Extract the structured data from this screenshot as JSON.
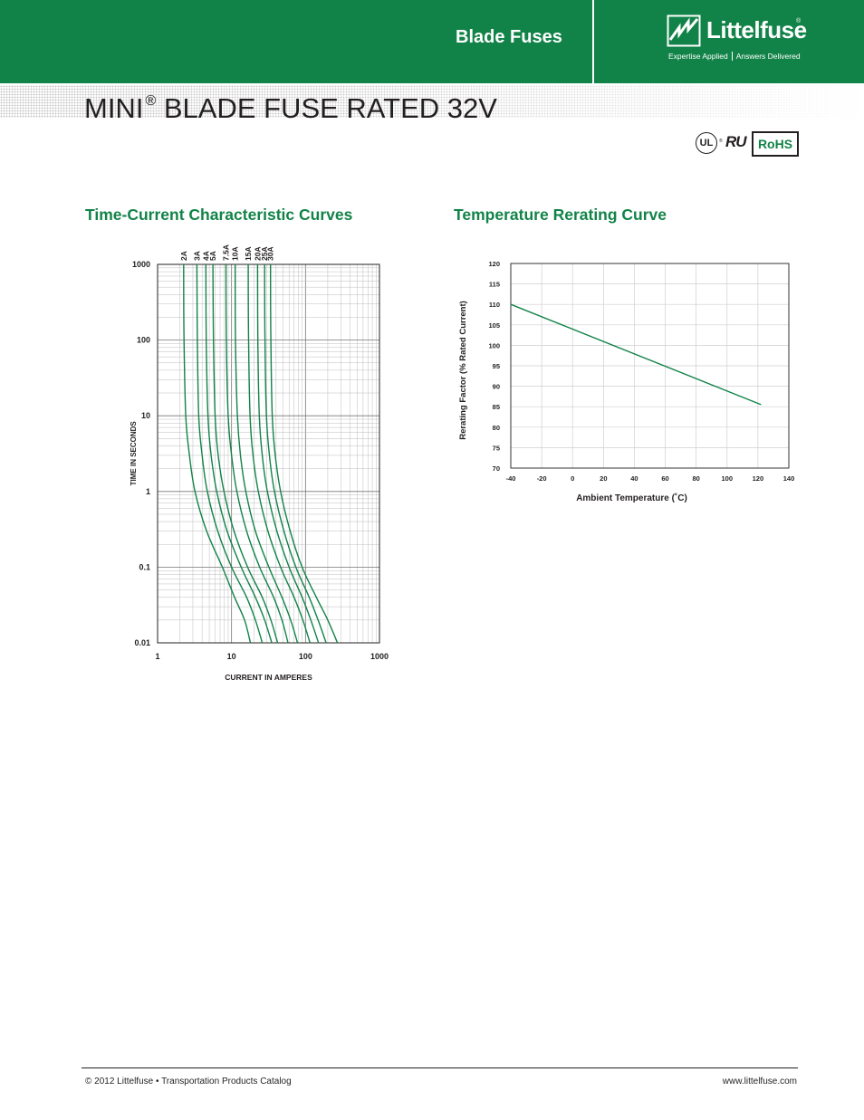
{
  "header": {
    "section_title": "Blade Fuses",
    "brand_name": "Littelfuse",
    "brand_reg": "®",
    "tagline_left": "Expertise Applied",
    "tagline_right": "Answers Delivered",
    "brand_color": "#128348"
  },
  "page_title": {
    "prefix": "MINI",
    "reg": "®",
    "rest": " BLADE FUSE RATED 32V"
  },
  "certifications": {
    "ul": "UL",
    "ur": "R",
    "rohs": "RoHS"
  },
  "chart_titles": {
    "time_current": "Time-Current Characteristic Curves",
    "rerating": "Temperature Rerating Curve"
  },
  "chart_data": [
    {
      "type": "line",
      "title": "Time-Current Characteristic Curves",
      "xlabel": "CURRENT IN AMPERES",
      "ylabel": "TIME IN SECONDS",
      "x_scale": "log",
      "y_scale": "log",
      "xlim": [
        1,
        1000
      ],
      "ylim": [
        0.01,
        1000
      ],
      "x_ticks": [
        "1",
        "10",
        "100",
        "1000"
      ],
      "y_ticks": [
        "0.01",
        "0.1",
        "1",
        "10",
        "100",
        "1000"
      ],
      "grid": true,
      "series": [
        {
          "name": "2A",
          "points": [
            [
              2.25,
              1000
            ],
            [
              2.28,
              100
            ],
            [
              2.4,
              10
            ],
            [
              2.7,
              3
            ],
            [
              3.2,
              1
            ],
            [
              4.6,
              0.3
            ],
            [
              7.5,
              0.1
            ],
            [
              11,
              0.04
            ],
            [
              15,
              0.02
            ],
            [
              18,
              0.01
            ]
          ]
        },
        {
          "name": "3A",
          "points": [
            [
              3.4,
              1000
            ],
            [
              3.45,
              100
            ],
            [
              3.6,
              10
            ],
            [
              4.0,
              3
            ],
            [
              4.7,
              1
            ],
            [
              6.5,
              0.3
            ],
            [
              10,
              0.1
            ],
            [
              16,
              0.04
            ],
            [
              21,
              0.02
            ],
            [
              26,
              0.01
            ]
          ]
        },
        {
          "name": "4A",
          "points": [
            [
              4.5,
              1000
            ],
            [
              4.55,
              100
            ],
            [
              4.8,
              10
            ],
            [
              5.3,
              3
            ],
            [
              6.3,
              1
            ],
            [
              8.7,
              0.3
            ],
            [
              13.5,
              0.1
            ],
            [
              21,
              0.04
            ],
            [
              28,
              0.02
            ],
            [
              35,
              0.01
            ]
          ]
        },
        {
          "name": "5A",
          "points": [
            [
              5.6,
              1000
            ],
            [
              5.7,
              100
            ],
            [
              6.0,
              10
            ],
            [
              6.6,
              3
            ],
            [
              7.9,
              1
            ],
            [
              10.8,
              0.3
            ],
            [
              16.5,
              0.1
            ],
            [
              26,
              0.04
            ],
            [
              34,
              0.02
            ],
            [
              42,
              0.01
            ]
          ]
        },
        {
          "name": "7.5A",
          "points": [
            [
              8.4,
              1000
            ],
            [
              8.5,
              100
            ],
            [
              9.0,
              10
            ],
            [
              10,
              3
            ],
            [
              11.8,
              1
            ],
            [
              16,
              0.3
            ],
            [
              24,
              0.1
            ],
            [
              37,
              0.04
            ],
            [
              48,
              0.02
            ],
            [
              58,
              0.01
            ]
          ]
        },
        {
          "name": "10A",
          "points": [
            [
              11.2,
              1000
            ],
            [
              11.3,
              100
            ],
            [
              12,
              10
            ],
            [
              13.2,
              3
            ],
            [
              15.6,
              1
            ],
            [
              21,
              0.3
            ],
            [
              32,
              0.1
            ],
            [
              48,
              0.04
            ],
            [
              63,
              0.02
            ],
            [
              78,
              0.01
            ]
          ]
        },
        {
          "name": "15A",
          "points": [
            [
              16.8,
              1000
            ],
            [
              17,
              100
            ],
            [
              17.8,
              10
            ],
            [
              19.5,
              3
            ],
            [
              23,
              1
            ],
            [
              31,
              0.3
            ],
            [
              46,
              0.1
            ],
            [
              70,
              0.04
            ],
            [
              92,
              0.02
            ],
            [
              115,
              0.01
            ]
          ]
        },
        {
          "name": "20A",
          "points": [
            [
              22.5,
              1000
            ],
            [
              22.7,
              100
            ],
            [
              23.7,
              10
            ],
            [
              26,
              3
            ],
            [
              30.5,
              1
            ],
            [
              41,
              0.3
            ],
            [
              60,
              0.1
            ],
            [
              90,
              0.04
            ],
            [
              118,
              0.02
            ],
            [
              150,
              0.01
            ]
          ]
        },
        {
          "name": "25A",
          "points": [
            [
              28,
              1000
            ],
            [
              28.3,
              100
            ],
            [
              29.6,
              10
            ],
            [
              32.5,
              3
            ],
            [
              38,
              1
            ],
            [
              51,
              0.3
            ],
            [
              74,
              0.1
            ],
            [
              112,
              0.04
            ],
            [
              148,
              0.02
            ],
            [
              190,
              0.01
            ]
          ]
        },
        {
          "name": "30A",
          "points": [
            [
              33.6,
              1000
            ],
            [
              34,
              100
            ],
            [
              35.5,
              10
            ],
            [
              39,
              3
            ],
            [
              46,
              1
            ],
            [
              62,
              0.3
            ],
            [
              90,
              0.1
            ],
            [
              140,
              0.04
            ],
            [
              200,
              0.02
            ],
            [
              270,
              0.01
            ]
          ]
        }
      ]
    },
    {
      "type": "line",
      "title": "Temperature Rerating Curve",
      "xlabel": "Ambient Temperature (˚C)",
      "ylabel": "Rerating Factor (% Rated Current)",
      "xlim": [
        -40,
        140
      ],
      "ylim": [
        70,
        120
      ],
      "x_ticks": [
        "-40",
        "-20",
        "0",
        "20",
        "40",
        "60",
        "80",
        "100",
        "120",
        "140"
      ],
      "y_ticks": [
        "70",
        "75",
        "80",
        "85",
        "90",
        "95",
        "100",
        "105",
        "110",
        "115",
        "120"
      ],
      "grid": true,
      "series": [
        {
          "points": [
            [
              -40,
              110
            ],
            [
              122,
              85.5
            ]
          ]
        }
      ]
    }
  ],
  "footer": {
    "left": "© 2012 Littelfuse • Transportation Products Catalog",
    "right": "www.littelfuse.com"
  }
}
